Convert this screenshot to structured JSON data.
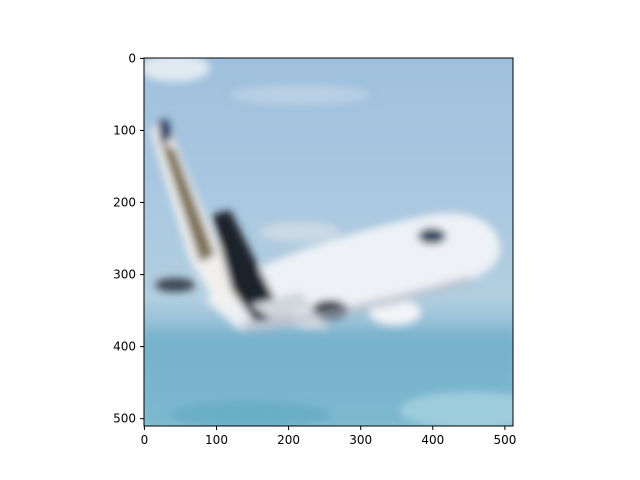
{
  "figure": {
    "image_description_icon": "airplane-photo",
    "x_ticks": [
      "0",
      "100",
      "200",
      "300",
      "400",
      "500"
    ],
    "y_ticks": [
      "0",
      "100",
      "200",
      "300",
      "400",
      "500"
    ],
    "x_range": [
      0,
      511
    ],
    "y_range": [
      0,
      511
    ],
    "y_inverted": true
  }
}
